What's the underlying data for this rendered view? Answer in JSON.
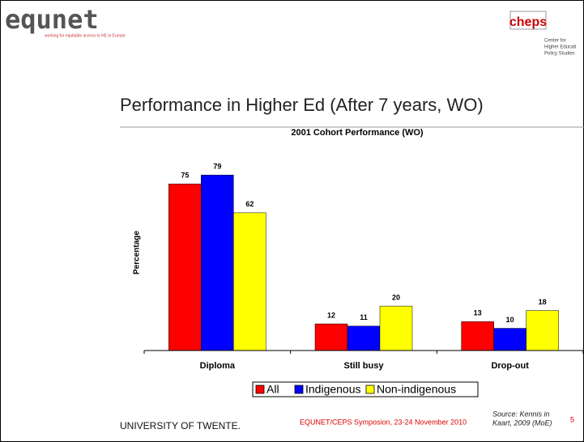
{
  "header": {
    "logo_left": "equnet",
    "logo_left_tagline": "working for equitable access to HE in Europe",
    "logo_right": "cheps",
    "logo_right_lines": [
      "Center for",
      "Higher Educati",
      "Policy Studies"
    ],
    "title": "Performance in Higher Ed (After 7 years, WO)"
  },
  "chart_data": {
    "type": "bar",
    "title": "2001 Cohort Performance (WO)",
    "y_label": "Percentage",
    "categories": [
      "Diploma",
      "Still busy",
      "Drop-out"
    ],
    "series": [
      {
        "name": "All",
        "color": "#ff0000",
        "values": [
          75,
          12,
          13
        ]
      },
      {
        "name": "Indigenous",
        "color": "#0000ff",
        "values": [
          79,
          11,
          10
        ]
      },
      {
        "name": "Non-indigenous",
        "color": "#ffff00",
        "values": [
          62,
          20,
          18
        ]
      }
    ],
    "ylim": [
      0,
      90
    ],
    "grid": false,
    "legend": "bottom"
  },
  "footer": {
    "university": "UNIVERSITY OF TWENTE.",
    "event": "EQUNET/CEPS Symposion, 23-24 November 2010",
    "source": [
      "Source: Kennis in",
      "Kaart, 2009 (MoE)"
    ],
    "page": "5"
  }
}
